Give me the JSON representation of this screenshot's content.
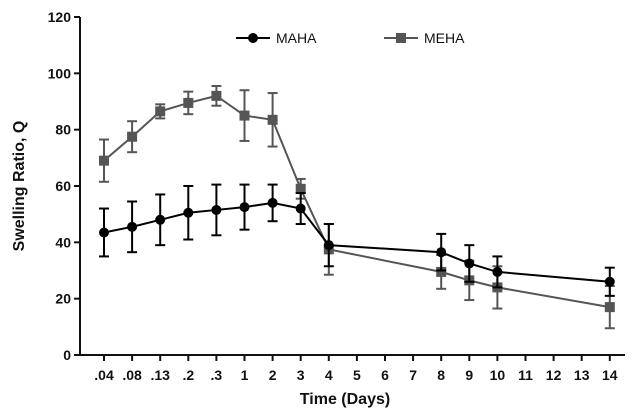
{
  "chart_data": {
    "type": "line",
    "title": "",
    "xlabel": "Time (Days)",
    "ylabel": "Swelling Ratio, Q",
    "ylim": [
      0,
      120
    ],
    "yticks": [
      "0",
      "20",
      "40",
      "60",
      "80",
      "100",
      "120"
    ],
    "categories": [
      ".04",
      ".08",
      ".13",
      ".2",
      ".3",
      "1",
      "2",
      "3",
      "4",
      "5",
      "6",
      "7",
      "8",
      "9",
      "10",
      "11",
      "12",
      "13",
      "14"
    ],
    "grid": false,
    "legend_position": "top",
    "series": [
      {
        "name": "MAHA",
        "color": "#000000",
        "marker": "circle",
        "points": [
          {
            "x": ".04",
            "y": 43.5,
            "err": 8.5
          },
          {
            "x": ".08",
            "y": 45.5,
            "err": 9
          },
          {
            "x": ".13",
            "y": 48,
            "err": 9
          },
          {
            "x": ".2",
            "y": 50.5,
            "err": 9.5
          },
          {
            "x": ".3",
            "y": 51.5,
            "err": 9
          },
          {
            "x": "1",
            "y": 52.5,
            "err": 8
          },
          {
            "x": "2",
            "y": 54,
            "err": 6.5
          },
          {
            "x": "3",
            "y": 52,
            "err": 5.5
          },
          {
            "x": "4",
            "y": 39,
            "err": 7.5
          },
          {
            "x": "8",
            "y": 36.5,
            "err": 6.5
          },
          {
            "x": "9",
            "y": 32.5,
            "err": 6.5
          },
          {
            "x": "10",
            "y": 29.5,
            "err": 5.5
          },
          {
            "x": "14",
            "y": 26,
            "err": 5
          }
        ]
      },
      {
        "name": "MEHA",
        "color": "#555555",
        "marker": "square",
        "points": [
          {
            "x": ".04",
            "y": 69,
            "err": 7.5
          },
          {
            "x": ".08",
            "y": 77.5,
            "err": 5.5
          },
          {
            "x": ".13",
            "y": 86.5,
            "err": 2.5
          },
          {
            "x": ".2",
            "y": 89.5,
            "err": 4
          },
          {
            "x": ".3",
            "y": 92,
            "err": 3.5
          },
          {
            "x": "1",
            "y": 85,
            "err": 9
          },
          {
            "x": "2",
            "y": 83.5,
            "err": 9.5
          },
          {
            "x": "3",
            "y": 59,
            "err": 3.5
          },
          {
            "x": "4",
            "y": 37.5,
            "err": 9
          },
          {
            "x": "8",
            "y": 29.5,
            "err": 6
          },
          {
            "x": "9",
            "y": 26.5,
            "err": 7
          },
          {
            "x": "10",
            "y": 24,
            "err": 7.5
          },
          {
            "x": "14",
            "y": 17,
            "err": 7.5
          }
        ]
      }
    ]
  }
}
